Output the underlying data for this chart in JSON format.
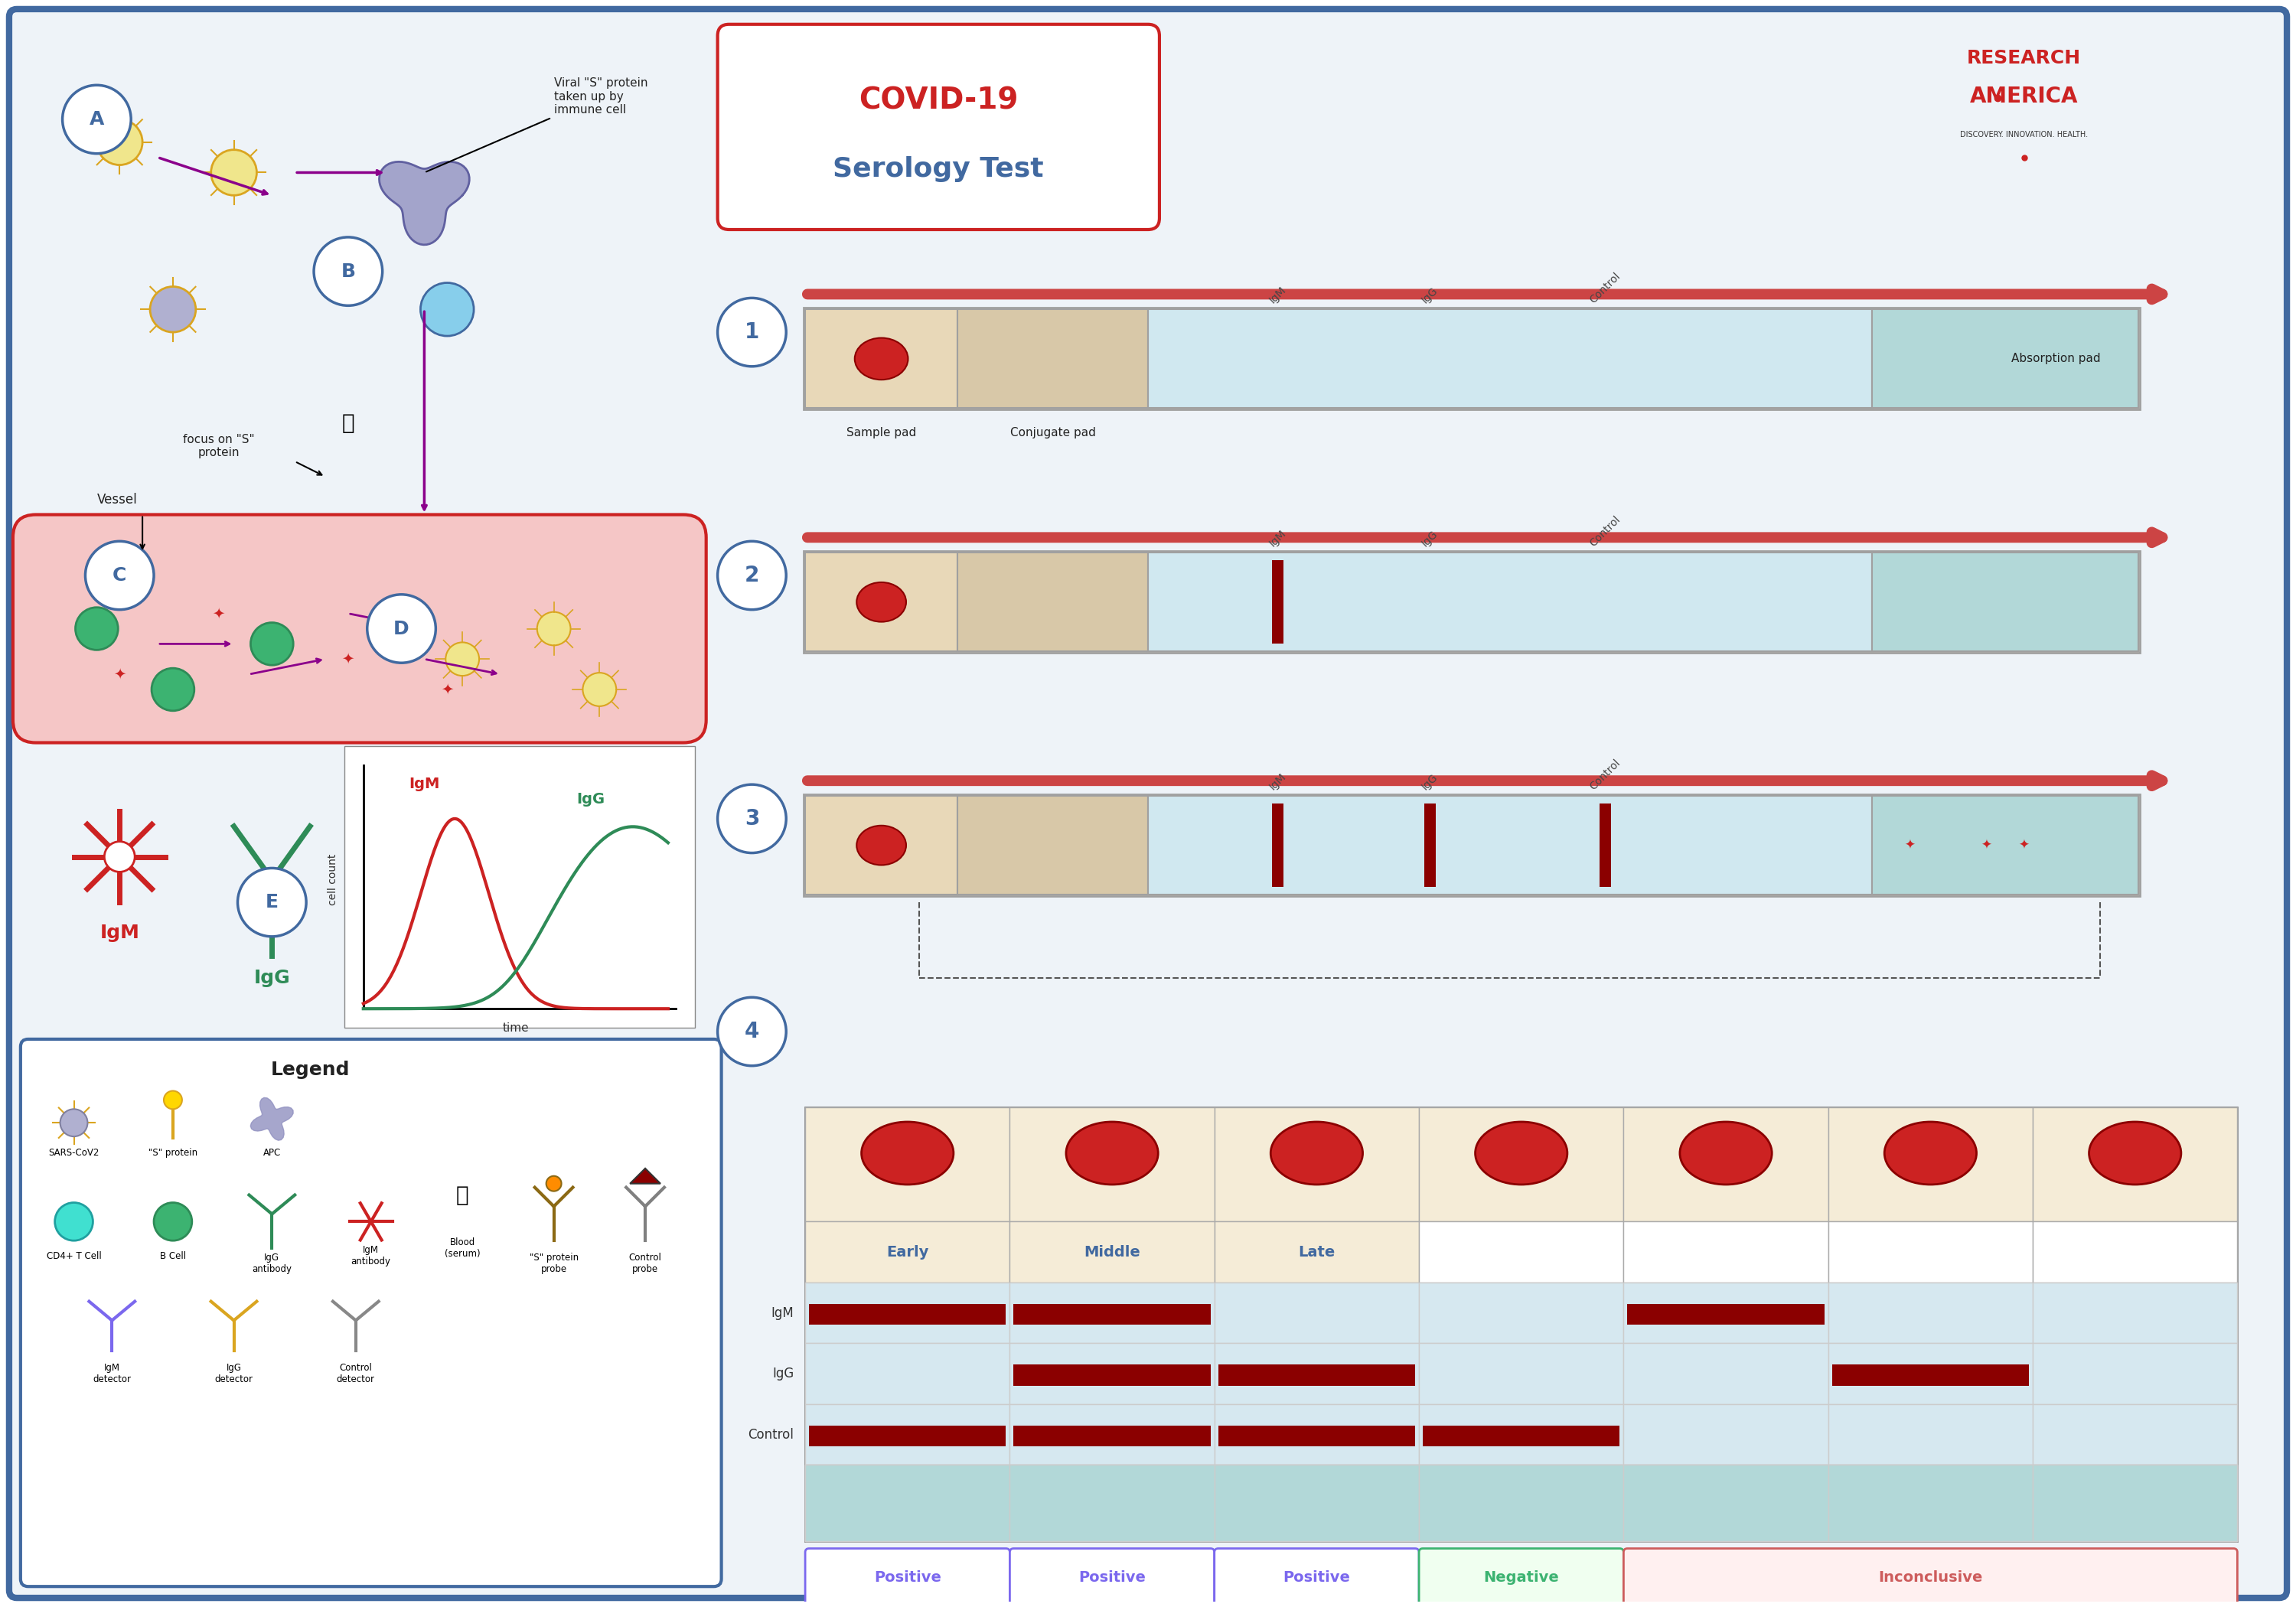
{
  "title": "COVID-19\nSerology Test",
  "bg_color": "#FFFFFF",
  "border_color": "#4169A0",
  "outer_bg": "#E8EEF5",
  "section_numbers": [
    "1",
    "2",
    "3",
    "4"
  ],
  "step_labels": [
    "Sample pad",
    "Conjugate pad",
    "Absorption pad",
    "IgM",
    "IgG",
    "Control"
  ],
  "table_cols": 7,
  "table_phase_labels": [
    "Early",
    "Middle",
    "Late"
  ],
  "table_row_labels": [
    "IgM",
    "IgG",
    "Control"
  ],
  "igm_positive_cols": [
    0,
    1,
    4
  ],
  "igg_positive_cols": [
    1,
    2,
    5
  ],
  "control_positive_cols": [
    0,
    1,
    2,
    3
  ],
  "result_labels": [
    "Positive",
    "Positive",
    "Positive",
    "Negative",
    "Inconclusive"
  ],
  "result_colors": [
    "#7B68EE",
    "#7B68EE",
    "#7B68EE",
    "#3CB371",
    "#CD5C5C"
  ],
  "result_spans": [
    1,
    1,
    1,
    1,
    3
  ],
  "red_dark": "#8B0000",
  "red_circle": "#CC2222",
  "table_header_bg": "#F5ECD7",
  "table_body_bg": "#D6E8F0",
  "table_teal_bg": "#B2D8D8",
  "legend_items_row1": [
    "SARS-CoV2",
    "\"S\" protein",
    "APC"
  ],
  "legend_items_row2": [
    "CD4+ T Cell",
    "B Cell",
    "IgG\nantibody",
    "IgM\nantibody"
  ],
  "legend_items_row3": [
    "Blood\n(serum)",
    "\"S\" protein\nprobe",
    "Control\nprobe"
  ],
  "legend_items_row4": [
    "IgM\ndetector",
    "IgG\ndetector",
    "Control\ndetector"
  ]
}
